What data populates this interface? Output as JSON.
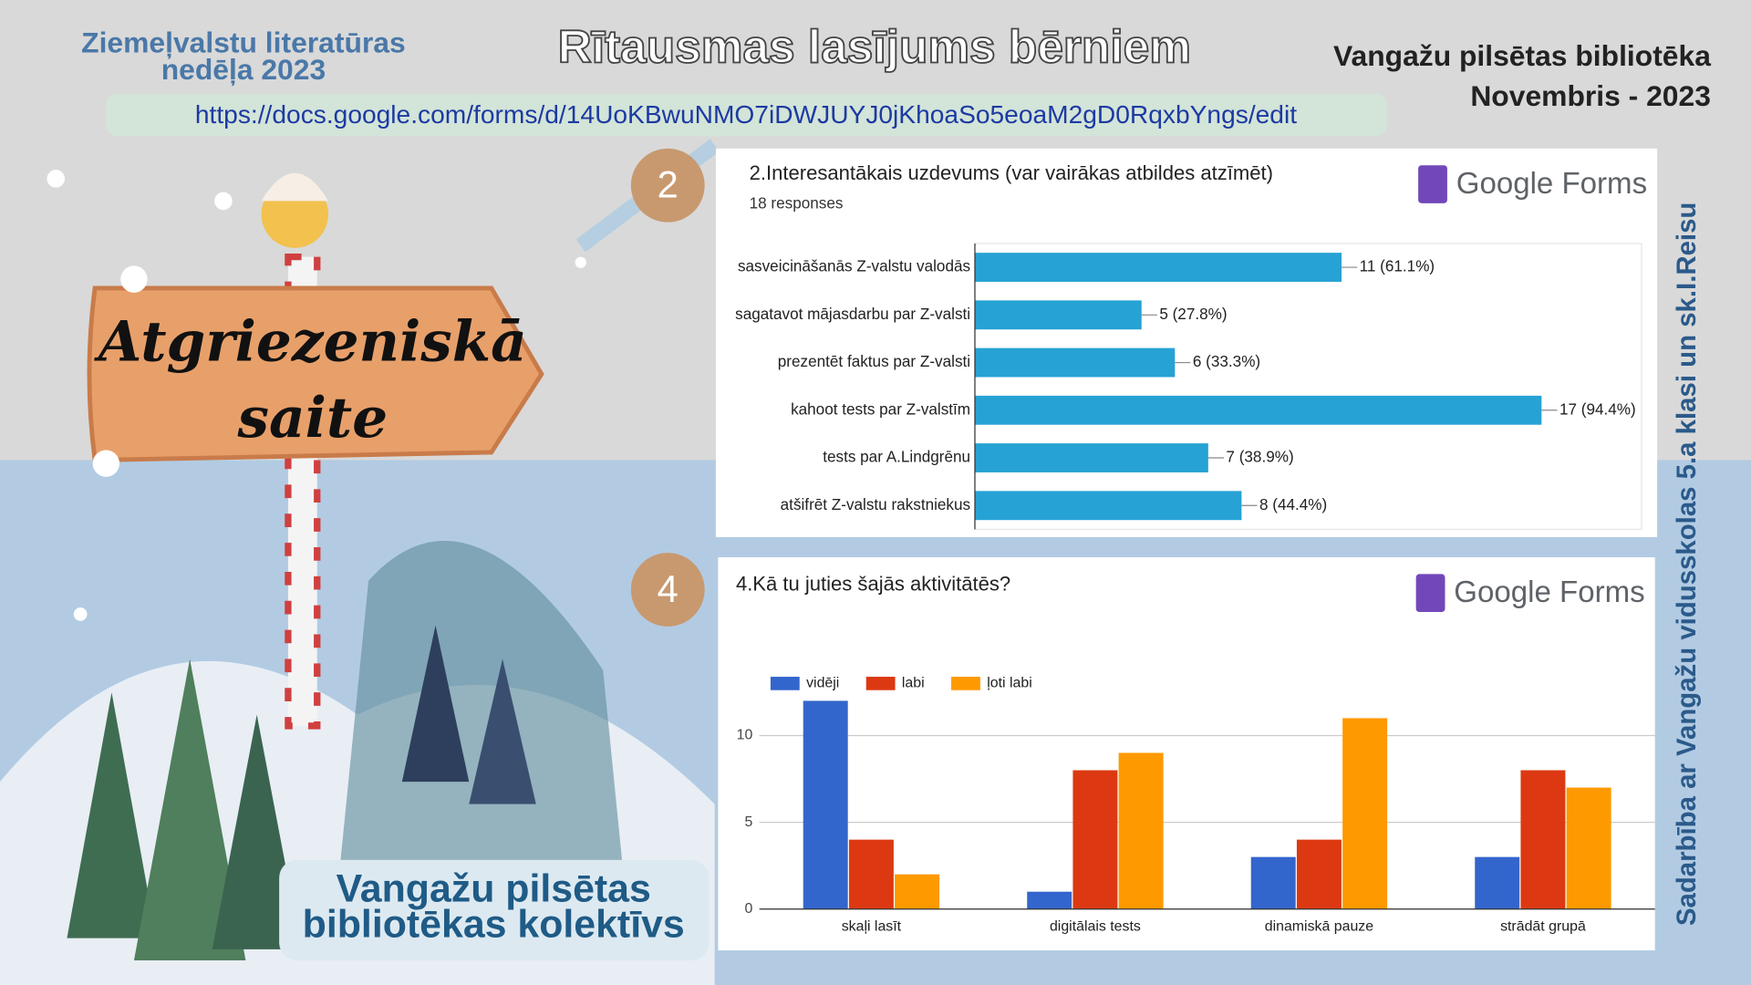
{
  "header": {
    "left_lines": [
      "Ziemeļvalstu literatūras",
      "nedēļa 2023"
    ],
    "title": "Rītausmas lasījums bērniem",
    "right_lines": [
      "Vangažu pilsētas bibliotēka",
      "Novembris - 2023"
    ],
    "url": "https://docs.google.com/forms/d/14UoKBwuNMO7iDWJUYJ0jKhoaSo5eoaM2gD0RqxbYngs/edit"
  },
  "sign_lines": [
    "Atgriezeniskā",
    "saite"
  ],
  "footer_lines": [
    "Vangažu pilsētas",
    "bibliotēkas kolektīvs"
  ],
  "side_text": "Sadarbība ar Vangažu vidusskolas 5.a klasi un sk.I.Reisu",
  "chart_data": [
    {
      "type": "bar",
      "orientation": "horizontal",
      "badge": "2",
      "brand": "Google Forms",
      "title": "2.Interesantākais uzdevums (var vairākas atbildes atzīmēt)",
      "subtitle": "18 responses",
      "categories": [
        "sasveicināšanās Z-valstu valodās",
        "sagatavot mājasdarbu par Z-valsti",
        "prezentēt faktus par Z-valsti",
        "kahoot tests par Z-valstīm",
        "tests par A.Lindgrēnu",
        "atšifrēt Z-valstu rakstniekus"
      ],
      "values": [
        11,
        5,
        6,
        17,
        7,
        8
      ],
      "value_labels": [
        "11 (61.1%)",
        "5 (27.8%)",
        "6 (33.3%)",
        "17 (94.4%)",
        "7 (38.9%)",
        "8 (44.4%)"
      ],
      "color": "#26a2d4",
      "xlim": [
        0,
        20
      ]
    },
    {
      "type": "bar",
      "badge": "4",
      "brand": "Google Forms",
      "title": "4.Kā tu juties šajās aktivitātēs?",
      "categories": [
        "skaļi lasīt",
        "digitālais tests",
        "dinamiskā pauze",
        "strādāt grupā"
      ],
      "series": [
        {
          "name": "vidēji",
          "color": "#3366cc",
          "values": [
            12,
            1,
            3,
            3
          ]
        },
        {
          "name": "labi",
          "color": "#dc3912",
          "values": [
            4,
            8,
            4,
            8
          ]
        },
        {
          "name": "ļoti labi",
          "color": "#ff9900",
          "values": [
            2,
            9,
            11,
            7
          ]
        }
      ],
      "ylim": [
        0,
        13
      ],
      "yticks": [
        0,
        5,
        10
      ],
      "grid": true,
      "legend": "top-left"
    }
  ]
}
